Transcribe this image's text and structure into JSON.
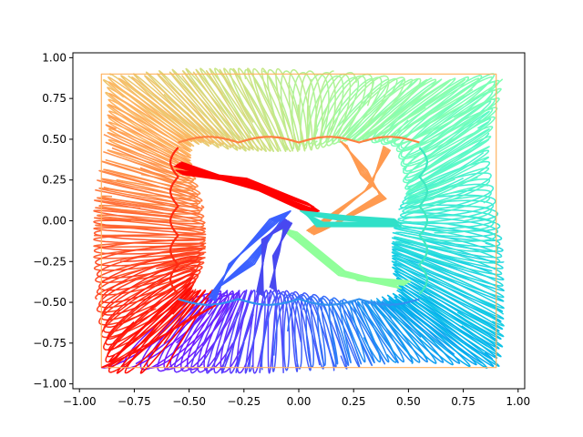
{
  "chart_data": {
    "type": "line",
    "title": "",
    "xlabel": "",
    "ylabel": "",
    "xlim": [
      -1.03,
      1.03
    ],
    "ylim": [
      -1.03,
      1.03
    ],
    "xticks": [
      -1.0,
      -0.75,
      -0.5,
      -0.25,
      0.0,
      0.25,
      0.5,
      0.75,
      1.0
    ],
    "xtick_labels": [
      "−1.00",
      "−0.75",
      "−0.50",
      "−0.25",
      "0.00",
      "0.25",
      "0.50",
      "0.75",
      "1.00"
    ],
    "yticks": [
      -1.0,
      -0.75,
      -0.5,
      -0.25,
      0.0,
      0.25,
      0.5,
      0.75,
      1.0
    ],
    "ytick_labels": [
      "−1.00",
      "−0.75",
      "−0.50",
      "−0.25",
      "0.00",
      "0.25",
      "0.50",
      "0.75",
      "1.00"
    ],
    "grid": false,
    "legend": "none",
    "colormap": "rainbow",
    "description_of_series": "Many looping trajectories colored by rainbow colormap, filling the band between an outer square (|x|,|y| ≈ 0.9) and an inner scalloped square (≈ ±0.45), with pinwheel arms into the center.",
    "series": [
      {
        "color": "#ff0000",
        "x": [
          -0.9,
          -0.75,
          -0.6,
          -0.45,
          -0.3
        ],
        "y": [
          -0.9,
          -0.88,
          -0.8,
          -0.65,
          -0.5
        ]
      },
      {
        "color": "#7f00ff",
        "x": [
          -0.9,
          -0.6,
          -0.3,
          0.0,
          0.3
        ],
        "y": [
          -0.9,
          -0.88,
          -0.86,
          -0.88,
          -0.9
        ]
      },
      {
        "color": "#00b5eb",
        "x": [
          0.9,
          0.88,
          0.86,
          0.88,
          0.9
        ],
        "y": [
          -0.9,
          -0.6,
          -0.3,
          0.0,
          0.3
        ]
      },
      {
        "color": "#80ffb4",
        "x": [
          0.9,
          0.6,
          0.3,
          0.0,
          -0.3
        ],
        "y": [
          0.92,
          0.9,
          0.88,
          0.9,
          0.92
        ]
      },
      {
        "color": "#ffb360",
        "x": [
          -0.9,
          -0.88,
          -0.86,
          -0.88,
          -0.9
        ],
        "y": [
          0.9,
          0.6,
          0.3,
          0.0,
          -0.3
        ]
      }
    ]
  }
}
